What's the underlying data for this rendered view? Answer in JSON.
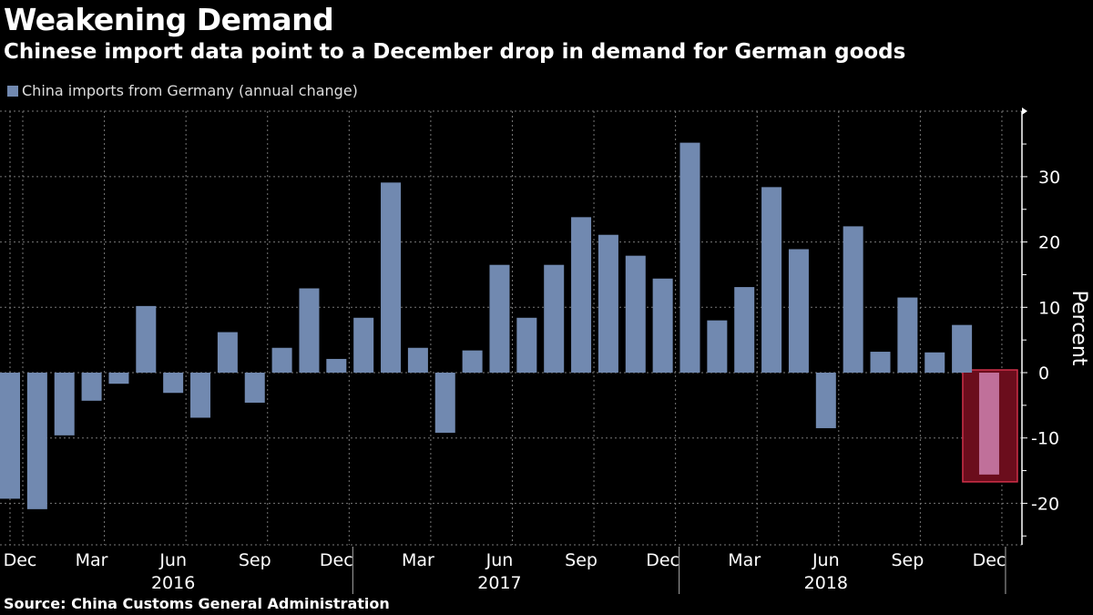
{
  "title": "Weakening Demand",
  "subtitle": "Chinese import data point to a December drop in demand for German goods",
  "source": "Source: China Customs General Administration",
  "chart_data": {
    "type": "bar",
    "ylabel": "Percent",
    "ylim": [
      -26,
      40
    ],
    "yticks": [
      -20,
      -10,
      0,
      10,
      20,
      30
    ],
    "grid": true,
    "legend_position": "top-left",
    "series": [
      {
        "name": "China imports from Germany (annual change)",
        "color": "#7189b0",
        "values": [
          -19.3,
          -20.9,
          -9.6,
          -4.3,
          -1.7,
          10.2,
          -3.1,
          -6.9,
          6.2,
          -4.6,
          3.8,
          12.9,
          2.1,
          8.4,
          29.1,
          3.8,
          -9.2,
          3.4,
          16.5,
          8.4,
          16.5,
          23.8,
          21.1,
          17.9,
          14.4,
          35.2,
          8.0,
          13.1,
          28.4,
          18.9,
          -8.5,
          22.4,
          3.2,
          11.5,
          3.1,
          7.3,
          -15.6
        ]
      }
    ],
    "categories": [
      "2015-12",
      "2016-01",
      "2016-02",
      "2016-03",
      "2016-04",
      "2016-05",
      "2016-06",
      "2016-07",
      "2016-08",
      "2016-09",
      "2016-10",
      "2016-11",
      "2016-12",
      "2017-01",
      "2017-02",
      "2017-03",
      "2017-04",
      "2017-05",
      "2017-06",
      "2017-07",
      "2017-08",
      "2017-09",
      "2017-10",
      "2017-11",
      "2017-12",
      "2018-01",
      "2018-02",
      "2018-03",
      "2018-04",
      "2018-05",
      "2018-06",
      "2018-07",
      "2018-08",
      "2018-09",
      "2018-10",
      "2018-11",
      "2018-12"
    ],
    "xtick_labels": [
      {
        "index": 0,
        "label": "Dec"
      },
      {
        "index": 3,
        "label": "Mar"
      },
      {
        "index": 6,
        "label": "Jun"
      },
      {
        "index": 9,
        "label": "Sep"
      },
      {
        "index": 12,
        "label": "Dec"
      },
      {
        "index": 15,
        "label": "Mar"
      },
      {
        "index": 18,
        "label": "Jun"
      },
      {
        "index": 21,
        "label": "Sep"
      },
      {
        "index": 24,
        "label": "Dec"
      },
      {
        "index": 27,
        "label": "Mar"
      },
      {
        "index": 30,
        "label": "Jun"
      },
      {
        "index": 33,
        "label": "Sep"
      },
      {
        "index": 36,
        "label": "Dec"
      }
    ],
    "year_labels": [
      {
        "index": 6,
        "label": "2016"
      },
      {
        "index": 18,
        "label": "2017"
      },
      {
        "index": 30,
        "label": "2018"
      }
    ],
    "highlight": {
      "index": 36,
      "color": "#c0709a",
      "box_color": "#6b0d1c",
      "border_color": "#d0304a"
    }
  }
}
